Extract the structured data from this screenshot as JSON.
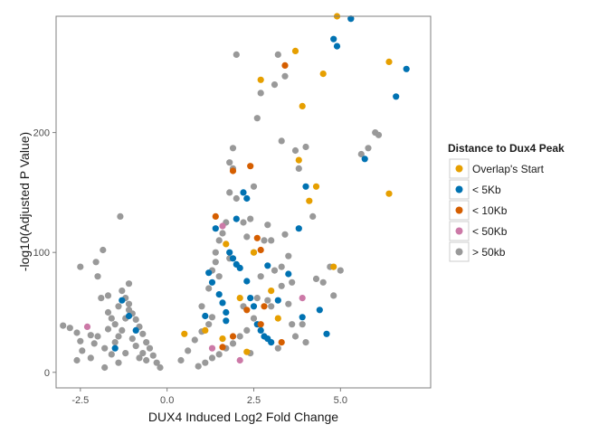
{
  "chart_data": {
    "type": "scatter",
    "title": "",
    "xlabel": "DUX4 Induced Log2 Fold Change",
    "ylabel": "-log10(Adjusted P Value)",
    "xlim": [
      -3.2,
      7.6
    ],
    "ylim": [
      -13,
      297
    ],
    "x_ticks": [
      -2.5,
      0.0,
      2.5,
      5.0
    ],
    "x_tick_labels": [
      "-2.5",
      "0.0",
      "2.5",
      "5.0"
    ],
    "y_ticks": [
      0,
      100,
      200
    ],
    "y_tick_labels": [
      "0",
      "100",
      "200"
    ],
    "grid": false,
    "legend": {
      "title": "Distance to Dux4 Peak",
      "placement": "right",
      "entries": [
        "Overlap's Start",
        "< 5Kb",
        "< 10Kb",
        "< 50Kb",
        "> 50kb"
      ]
    },
    "series": [
      {
        "name": "> 50kb",
        "color": "#999999",
        "points": [
          [
            -3.0,
            39
          ],
          [
            -2.8,
            37
          ],
          [
            -2.6,
            33
          ],
          [
            -2.5,
            26
          ],
          [
            -2.45,
            18
          ],
          [
            -2.5,
            88
          ],
          [
            -2.6,
            10
          ],
          [
            -2.2,
            31
          ],
          [
            -2.1,
            24
          ],
          [
            -2.05,
            92
          ],
          [
            -2.0,
            80
          ],
          [
            -1.9,
            62
          ],
          [
            -1.85,
            102
          ],
          [
            -1.7,
            50
          ],
          [
            -1.7,
            64
          ],
          [
            -1.6,
            45
          ],
          [
            -1.5,
            40
          ],
          [
            -1.4,
            55
          ],
          [
            -1.4,
            30
          ],
          [
            -1.35,
            130
          ],
          [
            -1.3,
            68
          ],
          [
            -1.2,
            62
          ],
          [
            -1.1,
            57
          ],
          [
            -1.1,
            74
          ],
          [
            -1.0,
            49
          ],
          [
            -0.9,
            44
          ],
          [
            -0.8,
            38
          ],
          [
            -0.7,
            32
          ],
          [
            -0.6,
            25
          ],
          [
            -0.5,
            20
          ],
          [
            -0.4,
            14
          ],
          [
            -0.3,
            8
          ],
          [
            -0.2,
            4
          ],
          [
            -1.8,
            20
          ],
          [
            -1.6,
            15
          ],
          [
            -1.5,
            25
          ],
          [
            -1.3,
            35
          ],
          [
            -1.2,
            45
          ],
          [
            -1.0,
            28
          ],
          [
            -0.9,
            22
          ],
          [
            -0.7,
            16
          ],
          [
            -0.6,
            10
          ],
          [
            -1.8,
            4
          ],
          [
            -2.2,
            12
          ],
          [
            -1.4,
            8
          ],
          [
            -2.0,
            30
          ],
          [
            -1.7,
            36
          ],
          [
            -1.1,
            52
          ],
          [
            -1.2,
            16
          ],
          [
            -0.8,
            12
          ],
          [
            0.4,
            10
          ],
          [
            0.6,
            18
          ],
          [
            0.8,
            27
          ],
          [
            1.0,
            34
          ],
          [
            1.2,
            40
          ],
          [
            1.3,
            46
          ],
          [
            1.0,
            55
          ],
          [
            1.2,
            70
          ],
          [
            1.3,
            85
          ],
          [
            1.4,
            92
          ],
          [
            1.4,
            100
          ],
          [
            1.5,
            110
          ],
          [
            1.6,
            116
          ],
          [
            1.7,
            125
          ],
          [
            1.9,
            187
          ],
          [
            1.9,
            170
          ],
          [
            1.8,
            175
          ],
          [
            1.8,
            150
          ],
          [
            2.0,
            145
          ],
          [
            2.0,
            265
          ],
          [
            2.2,
            125
          ],
          [
            2.3,
            113
          ],
          [
            2.4,
            128
          ],
          [
            2.5,
            155
          ],
          [
            2.6,
            212
          ],
          [
            2.7,
            233
          ],
          [
            2.8,
            110
          ],
          [
            2.9,
            123
          ],
          [
            3.0,
            110
          ],
          [
            3.1,
            240
          ],
          [
            3.3,
            193
          ],
          [
            3.4,
            115
          ],
          [
            3.5,
            97
          ],
          [
            3.5,
            57
          ],
          [
            3.3,
            72
          ],
          [
            3.6,
            75
          ],
          [
            3.8,
            170
          ],
          [
            3.9,
            40
          ],
          [
            4.0,
            25
          ],
          [
            4.2,
            130
          ],
          [
            4.3,
            78
          ],
          [
            4.5,
            75
          ],
          [
            4.7,
            88
          ],
          [
            4.8,
            64
          ],
          [
            5.0,
            85
          ],
          [
            5.3,
            295
          ],
          [
            5.8,
            187
          ],
          [
            5.6,
            182
          ],
          [
            6.0,
            200
          ],
          [
            6.1,
            198
          ],
          [
            3.2,
            265
          ],
          [
            2.7,
            80
          ],
          [
            2.9,
            60
          ],
          [
            3.0,
            55
          ],
          [
            2.5,
            45
          ],
          [
            2.3,
            35
          ],
          [
            2.1,
            30
          ],
          [
            1.9,
            24
          ],
          [
            1.7,
            20
          ],
          [
            1.5,
            15
          ],
          [
            1.3,
            12
          ],
          [
            1.1,
            8
          ],
          [
            0.9,
            5
          ],
          [
            3.1,
            85
          ],
          [
            2.2,
            55
          ],
          [
            2.6,
            62
          ],
          [
            1.8,
            95
          ],
          [
            2.5,
            100
          ],
          [
            3.3,
            88
          ],
          [
            3.6,
            40
          ],
          [
            1.5,
            80
          ],
          [
            2.4,
            16
          ],
          [
            3.2,
            20
          ],
          [
            3.7,
            30
          ],
          [
            4.0,
            188
          ],
          [
            3.4,
            247
          ],
          [
            3.7,
            185
          ]
        ]
      },
      {
        "name": "< 5Kb",
        "color": "#0072B2",
        "points": [
          [
            -1.3,
            60
          ],
          [
            -1.1,
            47
          ],
          [
            -0.9,
            35
          ],
          [
            -1.5,
            20
          ],
          [
            1.2,
            83
          ],
          [
            1.3,
            75
          ],
          [
            1.5,
            65
          ],
          [
            1.6,
            58
          ],
          [
            1.7,
            50
          ],
          [
            1.8,
            100
          ],
          [
            1.9,
            95
          ],
          [
            2.0,
            90
          ],
          [
            2.1,
            87
          ],
          [
            2.2,
            150
          ],
          [
            2.3,
            145
          ],
          [
            2.4,
            62
          ],
          [
            2.5,
            55
          ],
          [
            2.6,
            40
          ],
          [
            2.7,
            35
          ],
          [
            2.8,
            30
          ],
          [
            2.9,
            28
          ],
          [
            3.0,
            25
          ],
          [
            3.2,
            60
          ],
          [
            3.5,
            82
          ],
          [
            3.8,
            120
          ],
          [
            4.0,
            155
          ],
          [
            4.4,
            52
          ],
          [
            4.6,
            32
          ],
          [
            4.8,
            278
          ],
          [
            4.9,
            272
          ],
          [
            5.3,
            295
          ],
          [
            5.7,
            178
          ],
          [
            6.6,
            230
          ],
          [
            6.9,
            253
          ],
          [
            1.7,
            43
          ],
          [
            2.0,
            128
          ],
          [
            1.4,
            120
          ],
          [
            1.1,
            47
          ],
          [
            3.9,
            46
          ],
          [
            2.9,
            89
          ],
          [
            2.3,
            76
          ]
        ]
      },
      {
        "name": "Overlap's Start",
        "color": "#E69F00",
        "points": [
          [
            1.7,
            107
          ],
          [
            2.7,
            244
          ],
          [
            3.8,
            177
          ],
          [
            3.9,
            222
          ],
          [
            4.1,
            143
          ],
          [
            4.3,
            155
          ],
          [
            3.7,
            268
          ],
          [
            4.5,
            249
          ],
          [
            4.8,
            88
          ],
          [
            6.4,
            259
          ],
          [
            6.4,
            149
          ],
          [
            4.9,
            297
          ],
          [
            2.5,
            100
          ],
          [
            3.0,
            68
          ],
          [
            1.1,
            35
          ],
          [
            0.5,
            32
          ],
          [
            1.6,
            28
          ],
          [
            3.2,
            45
          ],
          [
            2.1,
            62
          ],
          [
            2.3,
            17
          ]
        ]
      },
      {
        "name": "< 10Kb",
        "color": "#D55E00",
        "points": [
          [
            3.4,
            256
          ],
          [
            2.4,
            172
          ],
          [
            1.9,
            168
          ],
          [
            1.4,
            130
          ],
          [
            2.6,
            112
          ],
          [
            2.7,
            102
          ],
          [
            2.3,
            52
          ],
          [
            2.8,
            55
          ],
          [
            3.3,
            25
          ],
          [
            1.9,
            30
          ],
          [
            2.7,
            40
          ],
          [
            1.6,
            21
          ]
        ]
      },
      {
        "name": "< 50Kb",
        "color": "#CC79A7",
        "points": [
          [
            -2.3,
            38
          ],
          [
            1.6,
            122
          ],
          [
            3.9,
            62
          ],
          [
            1.3,
            20
          ],
          [
            2.1,
            10
          ]
        ]
      }
    ]
  }
}
